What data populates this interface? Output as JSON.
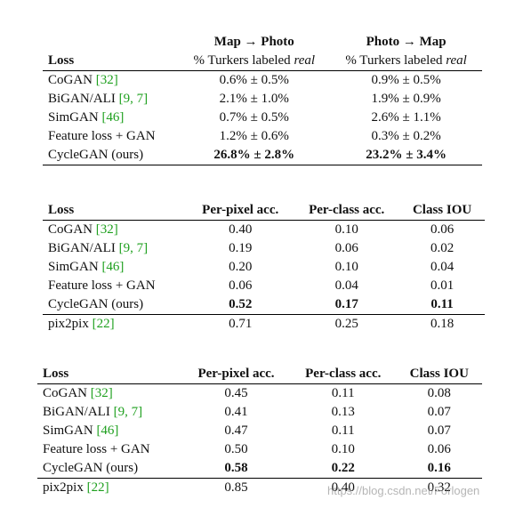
{
  "table1": {
    "header": {
      "loss": "Loss",
      "col1_title": "Map → Photo",
      "col1_sub_prefix": "% Turkers labeled ",
      "col1_sub_italic": "real",
      "col2_title": "Photo → Map",
      "col2_sub_prefix": "% Turkers labeled ",
      "col2_sub_italic": "real"
    },
    "rows": [
      {
        "name": "CoGAN ",
        "cite": "[32]",
        "c1": "0.6% ± 0.5%",
        "c2": "0.9% ± 0.5%"
      },
      {
        "name": "BiGAN/ALI ",
        "cite": "[9, 7]",
        "c1": "2.1% ± 1.0%",
        "c2": "1.9% ± 0.9%"
      },
      {
        "name": "SimGAN ",
        "cite": "[46]",
        "c1": "0.7% ± 0.5%",
        "c2": "2.6% ± 1.1%"
      },
      {
        "name": "Feature loss + GAN",
        "cite": "",
        "c1": "1.2% ± 0.6%",
        "c2": "0.3% ± 0.2%"
      },
      {
        "name": "CycleGAN (ours)",
        "cite": "",
        "c1": "26.8% ± 2.8%",
        "c2a": "23.2%",
        "c2b": " ± 3.4%"
      }
    ]
  },
  "table2": {
    "header": {
      "loss": "Loss",
      "c1": "Per-pixel acc.",
      "c2": "Per-class acc.",
      "c3": "Class IOU"
    },
    "rows": [
      {
        "name": "CoGAN ",
        "cite": "[32]",
        "c1": "0.40",
        "c2": "0.10",
        "c3": "0.06"
      },
      {
        "name": "BiGAN/ALI ",
        "cite": "[9, 7]",
        "c1": "0.19",
        "c2": "0.06",
        "c3": "0.02"
      },
      {
        "name": "SimGAN ",
        "cite": "[46]",
        "c1": "0.20",
        "c2": "0.10",
        "c3": "0.04"
      },
      {
        "name": "Feature loss + GAN",
        "cite": "",
        "c1": "0.06",
        "c2": "0.04",
        "c3": "0.01"
      },
      {
        "name": "CycleGAN (ours)",
        "cite": "",
        "c1": "0.52",
        "c2": "0.17",
        "c3": "0.11"
      },
      {
        "name": "pix2pix ",
        "cite": "[22]",
        "c1": "0.71",
        "c2": "0.25",
        "c3": "0.18"
      }
    ]
  },
  "table3": {
    "header": {
      "loss": "Loss",
      "c1": "Per-pixel acc.",
      "c2": "Per-class acc.",
      "c3": "Class IOU"
    },
    "rows": [
      {
        "name": "CoGAN ",
        "cite": "[32]",
        "c1": "0.45",
        "c2": "0.11",
        "c3": "0.08"
      },
      {
        "name": "BiGAN/ALI ",
        "cite": "[9, 7]",
        "c1": "0.41",
        "c2": "0.13",
        "c3": "0.07"
      },
      {
        "name": "SimGAN ",
        "cite": "[46]",
        "c1": "0.47",
        "c2": "0.11",
        "c3": "0.07"
      },
      {
        "name": "Feature loss + GAN",
        "cite": "",
        "c1": "0.50",
        "c2": "0.10",
        "c3": "0.06"
      },
      {
        "name": "CycleGAN (ours)",
        "cite": "",
        "c1": "0.58",
        "c2": "0.22",
        "c3": "0.16"
      },
      {
        "name": "pix2pix ",
        "cite": "[22]",
        "c1": "0.85",
        "c2": "0.40",
        "c3": "0.32"
      }
    ]
  },
  "watermark": "https://blog.csdn.net/Forlogen"
}
